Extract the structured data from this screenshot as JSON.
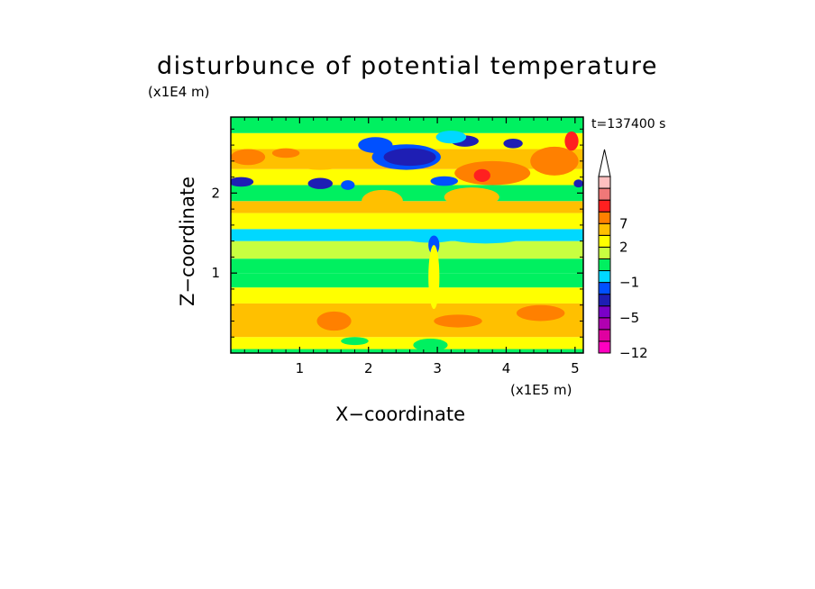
{
  "chart_data": {
    "type": "heatmap",
    "title": "disturbunce of potential temperature",
    "subtitle": "t=137400 s",
    "xlabel": "X−coordinate",
    "ylabel": "Z−coordinate",
    "x_unit": "(x1E5 m)",
    "y_unit": "(x1E4 m)",
    "xlim": [
      0,
      5.12
    ],
    "ylim": [
      0,
      2.95
    ],
    "x_ticks": [
      "1",
      "2",
      "3",
      "4",
      "5"
    ],
    "y_ticks": [
      "1",
      "2"
    ],
    "colorbar": {
      "tick_labels": [
        "−12",
        "−5",
        "−1",
        "2",
        "7"
      ],
      "levels": [
        "<−12",
        "−12..−9",
        "−9..−7",
        "−7..−5",
        "−5..−3",
        "−3..−1",
        "−1..0",
        "0..1",
        "1..2",
        "2..3",
        "3..5",
        "5..7",
        "7..9",
        "9..11",
        ">11"
      ],
      "colors": [
        "#ff00c0",
        "#e000a0",
        "#b000b0",
        "#7a00c8",
        "#1e1eb4",
        "#0050ff",
        "#00d8ff",
        "#00f060",
        "#c8ff40",
        "#ffff00",
        "#ffc000",
        "#ff8000",
        "#ff2020",
        "#f07878",
        "#ffc0c0"
      ],
      "top_extension": "white triangle"
    },
    "bands": [
      {
        "z0": 0.0,
        "z1": 0.05,
        "color": "#00f060"
      },
      {
        "z0": 0.05,
        "z1": 0.2,
        "color": "#ffff00"
      },
      {
        "z0": 0.2,
        "z1": 0.62,
        "color": "#ffc000"
      },
      {
        "z0": 0.62,
        "z1": 0.82,
        "color": "#ffff00"
      },
      {
        "z0": 0.82,
        "z1": 1.0,
        "color": "#00f060"
      },
      {
        "z0": 1.0,
        "z1": 1.18,
        "color": "#00f060"
      },
      {
        "z0": 1.18,
        "z1": 1.4,
        "color": "#c8ff40"
      },
      {
        "z0": 1.4,
        "z1": 1.55,
        "color": "#00d8ff"
      },
      {
        "z0": 1.55,
        "z1": 1.75,
        "color": "#ffff00"
      },
      {
        "z0": 1.75,
        "z1": 1.9,
        "color": "#ffc000"
      },
      {
        "z0": 1.9,
        "z1": 2.1,
        "color": "#00f060"
      },
      {
        "z0": 2.1,
        "z1": 2.3,
        "color": "#ffff00"
      },
      {
        "z0": 2.3,
        "z1": 2.55,
        "color": "#ffc000"
      },
      {
        "z0": 2.55,
        "z1": 2.75,
        "color": "#ffff00"
      },
      {
        "z0": 2.75,
        "z1": 2.95,
        "color": "#00f060"
      }
    ],
    "patches": [
      {
        "x": 0.25,
        "z": 2.45,
        "rx": 0.25,
        "rz": 0.1,
        "color": "#ff8000"
      },
      {
        "x": 0.8,
        "z": 2.5,
        "rx": 0.2,
        "rz": 0.06,
        "color": "#ff8000"
      },
      {
        "x": 1.3,
        "z": 2.35,
        "rx": 0.3,
        "rz": 0.06,
        "color": "#ffc000"
      },
      {
        "x": 0.15,
        "z": 2.14,
        "rx": 0.18,
        "rz": 0.06,
        "color": "#1e1eb4"
      },
      {
        "x": 1.3,
        "z": 2.12,
        "rx": 0.18,
        "rz": 0.07,
        "color": "#1e1eb4"
      },
      {
        "x": 1.7,
        "z": 2.1,
        "rx": 0.1,
        "rz": 0.06,
        "color": "#0050ff"
      },
      {
        "x": 2.55,
        "z": 2.45,
        "rx": 0.5,
        "rz": 0.16,
        "color": "#0050ff"
      },
      {
        "x": 2.6,
        "z": 2.45,
        "rx": 0.38,
        "rz": 0.11,
        "color": "#1e1eb4"
      },
      {
        "x": 2.1,
        "z": 2.6,
        "rx": 0.25,
        "rz": 0.1,
        "color": "#0050ff"
      },
      {
        "x": 3.4,
        "z": 2.65,
        "rx": 0.2,
        "rz": 0.07,
        "color": "#1e1eb4"
      },
      {
        "x": 4.1,
        "z": 2.62,
        "rx": 0.14,
        "rz": 0.06,
        "color": "#1e1eb4"
      },
      {
        "x": 3.1,
        "z": 2.15,
        "rx": 0.2,
        "rz": 0.06,
        "color": "#0050ff"
      },
      {
        "x": 3.2,
        "z": 2.7,
        "rx": 0.22,
        "rz": 0.08,
        "color": "#00d8ff"
      },
      {
        "x": 3.8,
        "z": 2.25,
        "rx": 0.55,
        "rz": 0.15,
        "color": "#ff8000"
      },
      {
        "x": 3.65,
        "z": 2.22,
        "rx": 0.12,
        "rz": 0.08,
        "color": "#ff2020"
      },
      {
        "x": 4.7,
        "z": 2.4,
        "rx": 0.35,
        "rz": 0.18,
        "color": "#ff8000"
      },
      {
        "x": 4.95,
        "z": 2.65,
        "rx": 0.1,
        "rz": 0.12,
        "color": "#ff2020"
      },
      {
        "x": 5.05,
        "z": 2.12,
        "rx": 0.07,
        "rz": 0.05,
        "color": "#1e1eb4"
      },
      {
        "x": 2.2,
        "z": 1.9,
        "rx": 0.3,
        "rz": 0.14,
        "color": "#ffc000"
      },
      {
        "x": 3.5,
        "z": 1.95,
        "rx": 0.4,
        "rz": 0.12,
        "color": "#ffc000"
      },
      {
        "x": 2.9,
        "z": 1.45,
        "rx": 0.4,
        "rz": 0.07,
        "color": "#00d8ff"
      },
      {
        "x": 3.7,
        "z": 1.45,
        "rx": 0.55,
        "rz": 0.08,
        "color": "#00d8ff"
      },
      {
        "x": 2.95,
        "z": 1.35,
        "rx": 0.08,
        "rz": 0.12,
        "color": "#0050ff"
      },
      {
        "x": 4.6,
        "z": 1.48,
        "rx": 0.3,
        "rz": 0.06,
        "color": "#00d8ff"
      },
      {
        "x": 2.95,
        "z": 0.95,
        "rx": 0.08,
        "rz": 0.4,
        "color": "#ffff00"
      },
      {
        "x": 1.5,
        "z": 0.4,
        "rx": 0.25,
        "rz": 0.12,
        "color": "#ff8000"
      },
      {
        "x": 0.6,
        "z": 0.35,
        "rx": 0.35,
        "rz": 0.1,
        "color": "#ffc000"
      },
      {
        "x": 3.3,
        "z": 0.4,
        "rx": 0.35,
        "rz": 0.08,
        "color": "#ff8000"
      },
      {
        "x": 4.5,
        "z": 0.5,
        "rx": 0.35,
        "rz": 0.1,
        "color": "#ff8000"
      },
      {
        "x": 2.9,
        "z": 0.1,
        "rx": 0.25,
        "rz": 0.08,
        "color": "#00f060"
      },
      {
        "x": 1.8,
        "z": 0.15,
        "rx": 0.2,
        "rz": 0.05,
        "color": "#00f060"
      }
    ]
  }
}
